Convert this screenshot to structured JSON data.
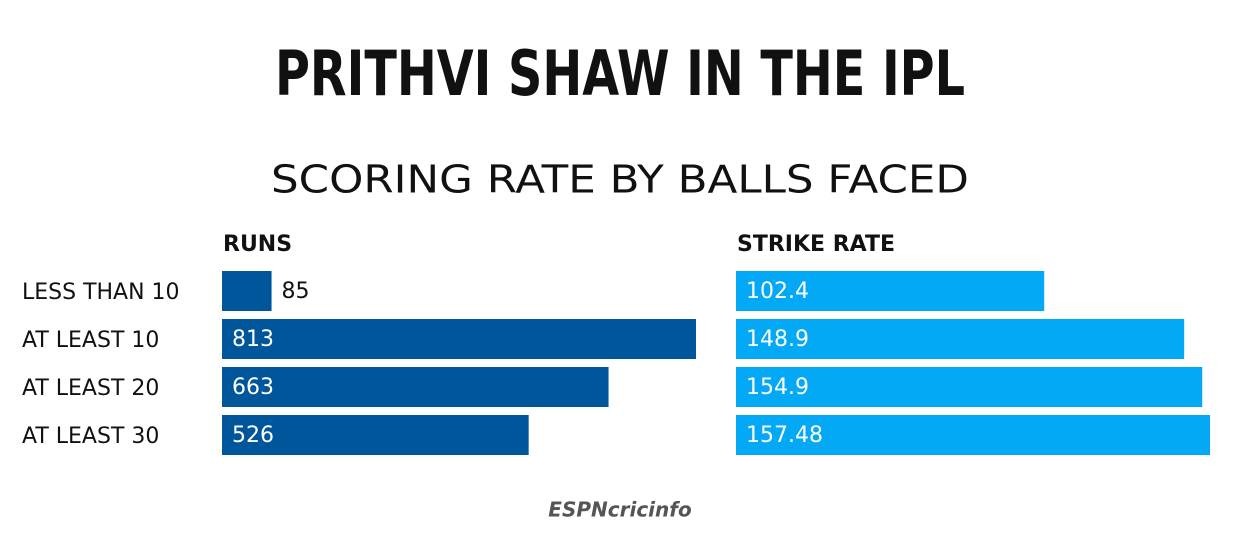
{
  "chart_data": {
    "type": "bar",
    "orientation": "horizontal",
    "title": "PRITHVI SHAW IN THE IPL",
    "subtitle": "SCORING RATE BY BALLS FACED",
    "categories": [
      "LESS THAN 10",
      "AT LEAST 10",
      "AT LEAST 20",
      "AT LEAST 30"
    ],
    "series": [
      {
        "name": "RUNS",
        "color": "#00569b",
        "values": [
          85,
          813,
          663,
          526
        ]
      },
      {
        "name": "STRIKE RATE",
        "color": "#03a9f4",
        "values": [
          102.4,
          148.9,
          154.9,
          157.48
        ]
      }
    ],
    "source": "ESPNcricinfo"
  }
}
